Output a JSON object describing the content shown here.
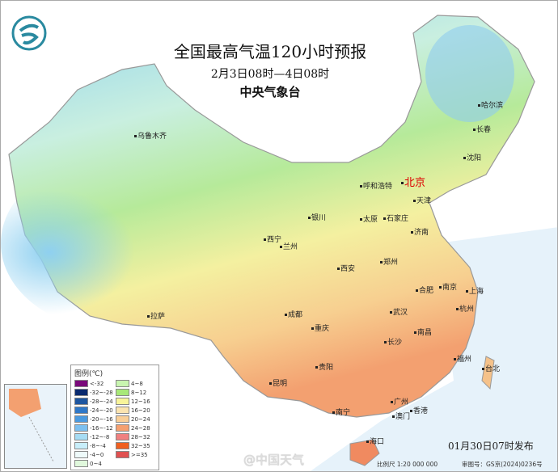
{
  "title": "全国最高气温120小时预报",
  "period": "2月3日08时—4日08时",
  "issuer": "中央气象台",
  "publish_time": "01月30日07时发布",
  "scale": "比例尺 1:20 000 000",
  "review_no": "审图号：GS京(2024)0236号",
  "watermark": "@中国天气",
  "legend": {
    "title": "图例(℃)",
    "items": [
      {
        "label": "<-32",
        "color": "#7a0a7a"
      },
      {
        "label": "-32~-28",
        "color": "#0a2a6e"
      },
      {
        "label": "-28~-24",
        "color": "#1e56a0"
      },
      {
        "label": "-24~-20",
        "color": "#2f78c8"
      },
      {
        "label": "-20~-16",
        "color": "#4a9ae0"
      },
      {
        "label": "-16~-12",
        "color": "#7cc0f0"
      },
      {
        "label": "-12~-8",
        "color": "#a6dcf4"
      },
      {
        "label": "-8~-4",
        "color": "#c8eefa"
      },
      {
        "label": "-4~0",
        "color": "#eefafa"
      },
      {
        "label": "0~4",
        "color": "#e0f8dc"
      },
      {
        "label": "4~8",
        "color": "#c8f5b0"
      },
      {
        "label": "8~12",
        "color": "#a8e878"
      },
      {
        "label": "12~16",
        "color": "#f8f49a"
      },
      {
        "label": "16~20",
        "color": "#fbe4b0"
      },
      {
        "label": "20~24",
        "color": "#f9cf98"
      },
      {
        "label": "24~28",
        "color": "#f5a070"
      },
      {
        "label": "28~32",
        "color": "#f08080"
      },
      {
        "label": "32~35",
        "color": "#f06020"
      },
      {
        "label": ">=35",
        "color": "#e05050"
      }
    ]
  },
  "cities": [
    {
      "name": "乌鲁木齐"
    },
    {
      "name": "哈尔滨"
    },
    {
      "name": "长春"
    },
    {
      "name": "沈阳"
    },
    {
      "name": "北京"
    },
    {
      "name": "天津"
    },
    {
      "name": "呼和浩特"
    },
    {
      "name": "石家庄"
    },
    {
      "name": "太原"
    },
    {
      "name": "济南"
    },
    {
      "name": "银川"
    },
    {
      "name": "西宁"
    },
    {
      "name": "兰州"
    },
    {
      "name": "郑州"
    },
    {
      "name": "西安"
    },
    {
      "name": "合肥"
    },
    {
      "name": "南京"
    },
    {
      "name": "上海"
    },
    {
      "name": "武汉"
    },
    {
      "name": "杭州"
    },
    {
      "name": "成都"
    },
    {
      "name": "拉萨"
    },
    {
      "name": "重庆"
    },
    {
      "name": "长沙"
    },
    {
      "name": "南昌"
    },
    {
      "name": "福州"
    },
    {
      "name": "台北"
    },
    {
      "name": "贵阳"
    },
    {
      "name": "昆明"
    },
    {
      "name": "广州"
    },
    {
      "name": "南宁"
    },
    {
      "name": "澳门"
    },
    {
      "name": "香港"
    },
    {
      "name": "海口"
    }
  ]
}
